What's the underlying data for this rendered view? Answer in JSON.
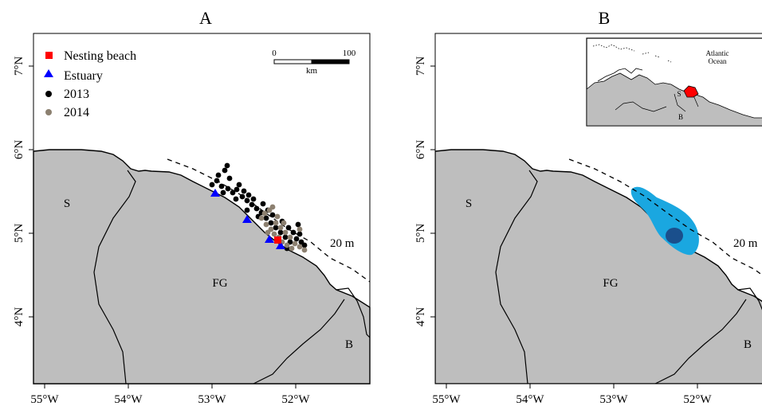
{
  "panels": [
    {
      "title": "A",
      "x_ticks": [
        "55°W",
        "54°W",
        "53°W",
        "52°W"
      ],
      "y_ticks": [
        "4°N",
        "5°N",
        "6°N",
        "7°N"
      ],
      "labels": {
        "suriname": "S",
        "french_guiana": "FG",
        "brazil": "B",
        "isobath": "20 m"
      },
      "legend": [
        {
          "label": "Nesting beach",
          "color": "#ff0000",
          "shape": "square"
        },
        {
          "label": "Estuary",
          "color": "#0000ff",
          "shape": "triangle"
        },
        {
          "label": "2013",
          "color": "#000000",
          "shape": "circle"
        },
        {
          "label": "2014",
          "color": "#8c8070",
          "shape": "circle"
        }
      ],
      "scalebar": {
        "min": "0",
        "max": "100",
        "unit": "km"
      }
    },
    {
      "title": "B",
      "x_ticks": [
        "55°W",
        "54°W",
        "53°W",
        "52°W"
      ],
      "y_ticks": [
        "4°N",
        "5°N",
        "6°N",
        "7°N"
      ],
      "labels": {
        "suriname": "S",
        "french_guiana": "FG",
        "brazil": "B",
        "isobath": "20 m"
      },
      "inset": {
        "ocean_line1": "Atlantic",
        "ocean_line2": "Ocean",
        "s": "S",
        "b": "B"
      },
      "density_colors": {
        "outer": "#1aa7e0",
        "core": "#1a4f8c"
      }
    }
  ],
  "colors": {
    "land": "#bebebe",
    "coast": "#000000"
  }
}
